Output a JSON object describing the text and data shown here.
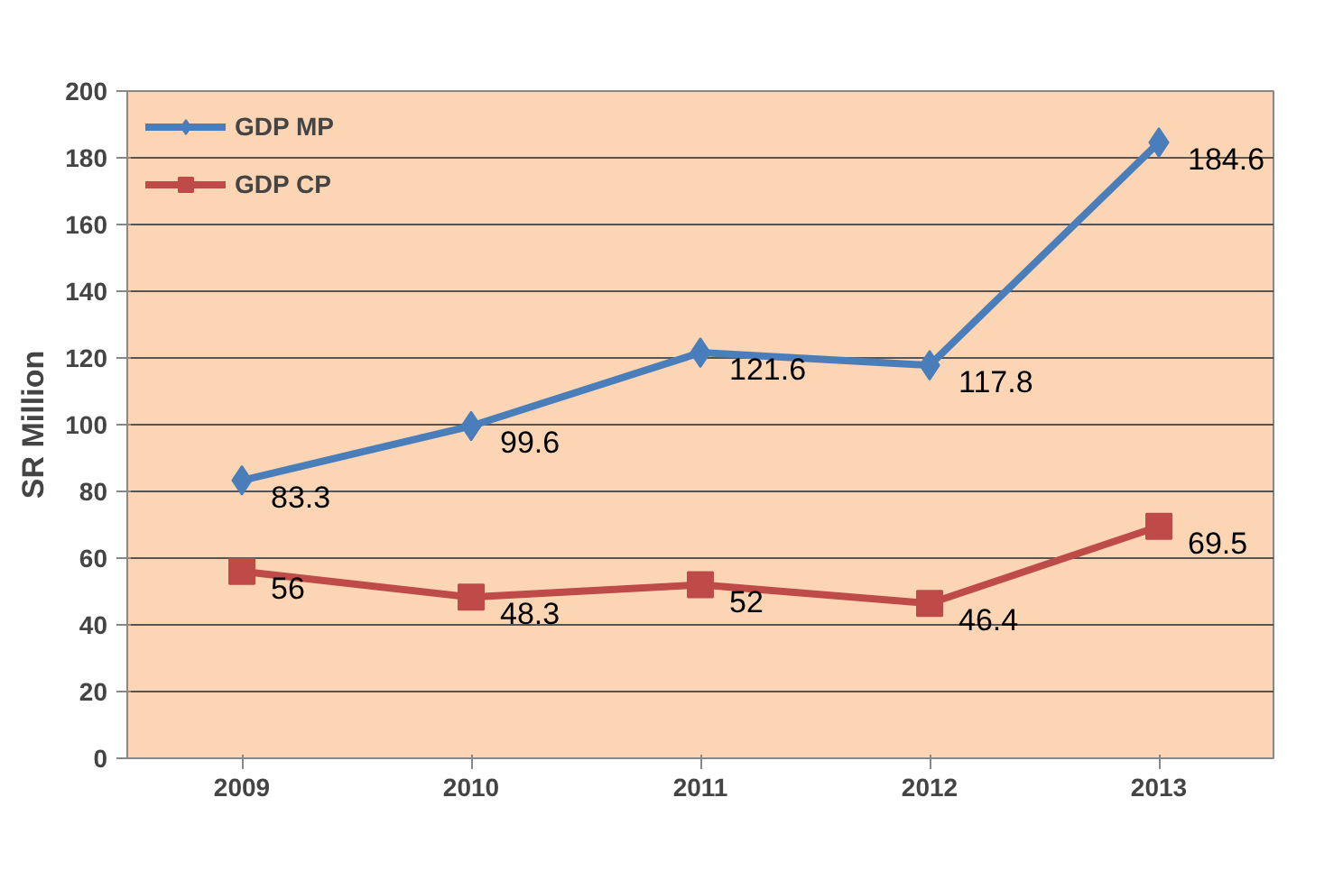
{
  "chart_data": {
    "type": "line",
    "ylabel": "SR Million",
    "categories": [
      "2009",
      "2010",
      "2011",
      "2012",
      "2013"
    ],
    "series": [
      {
        "name": "GDP MP",
        "color": "#4a7ebb",
        "marker": "diamond",
        "values": [
          83.3,
          99.6,
          121.6,
          117.8,
          184.6
        ]
      },
      {
        "name": "GDP CP",
        "color": "#be4b48",
        "marker": "square",
        "values": [
          56,
          48.3,
          52,
          46.4,
          69.5
        ]
      }
    ],
    "ylim": [
      0,
      200
    ],
    "yticks": [
      0,
      20,
      40,
      60,
      80,
      100,
      120,
      140,
      160,
      180,
      200
    ],
    "grid": "y",
    "legend": "top left",
    "data_labels": true,
    "line_style": "solid"
  }
}
